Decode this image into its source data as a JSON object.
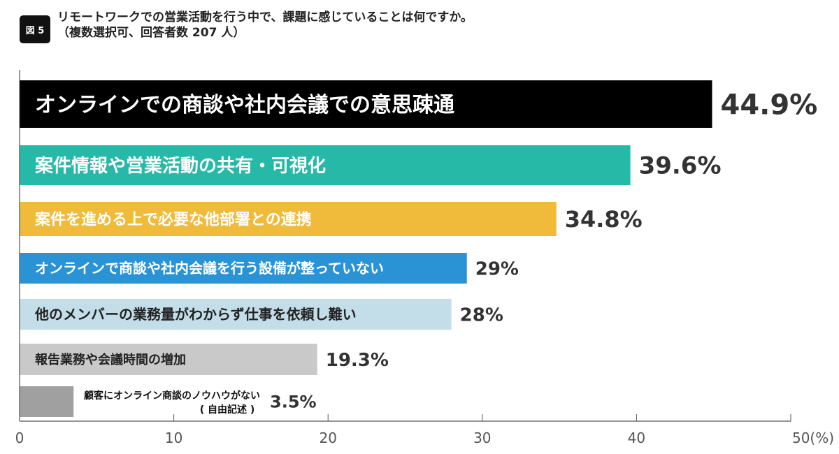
{
  "figure_label": "図 5",
  "chart_data": {
    "type": "bar",
    "orientation": "horizontal",
    "title": "リモートワークでの営業活動を行う中で、課題に感じていることは何ですか。",
    "subtitle": "（複数選択可、回答者数 207 人）",
    "xlim": [
      0,
      50
    ],
    "xticks": [
      "0",
      "10",
      "20",
      "30",
      "40",
      "50(%)"
    ],
    "grid": false,
    "categories": [
      "オンラインでの商談や社内会議での意思疎通",
      "案件情報や営業活動の共有・可視化",
      "案件を進める上で必要な他部署との連携",
      "オンラインで商談や社内会議を行う設備が整っていない",
      "他のメンバーの業務量がわからず仕事を依頼し難い",
      "報告業務や会議時間の増加",
      "顧客にオンライン商談のノウハウがない"
    ],
    "category_note": "( 自由記述 )",
    "values": [
      44.9,
      39.6,
      34.8,
      29,
      28,
      19.3,
      3.5
    ],
    "value_labels": [
      "44.9%",
      "39.6%",
      "34.8%",
      "29%",
      "28%",
      "19.3%",
      "3.5%"
    ],
    "colors": [
      "#000000",
      "#27b9a7",
      "#f0bb3a",
      "#2a93d5",
      "#c3dde9",
      "#c9c9c9",
      "#a0a0a0"
    ]
  }
}
